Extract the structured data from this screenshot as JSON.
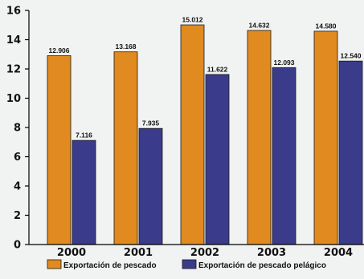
{
  "chart_data": {
    "type": "bar",
    "title": "",
    "xlabel": "",
    "ylabel": "",
    "ylim": [
      0,
      16
    ],
    "yticks": [
      0,
      2,
      4,
      6,
      8,
      10,
      12,
      14,
      16
    ],
    "categories": [
      "2000",
      "2001",
      "2002",
      "2003",
      "2004"
    ],
    "series": [
      {
        "name": "Exportación de pescado",
        "color": "#e18a1f",
        "values": [
          12.906,
          13.168,
          15.012,
          14.632,
          14.58
        ],
        "labels": [
          "12.906",
          "13.168",
          "15.012",
          "14.632",
          "14.580"
        ]
      },
      {
        "name": "Exportación de pescado pelágico",
        "color": "#3b3b8c",
        "values": [
          7.116,
          7.935,
          11.622,
          12.093,
          12.54
        ],
        "labels": [
          "7.116",
          "7.935",
          "11.622",
          "12.093",
          "12.540"
        ]
      }
    ],
    "grid": false,
    "legend_position": "bottom"
  }
}
